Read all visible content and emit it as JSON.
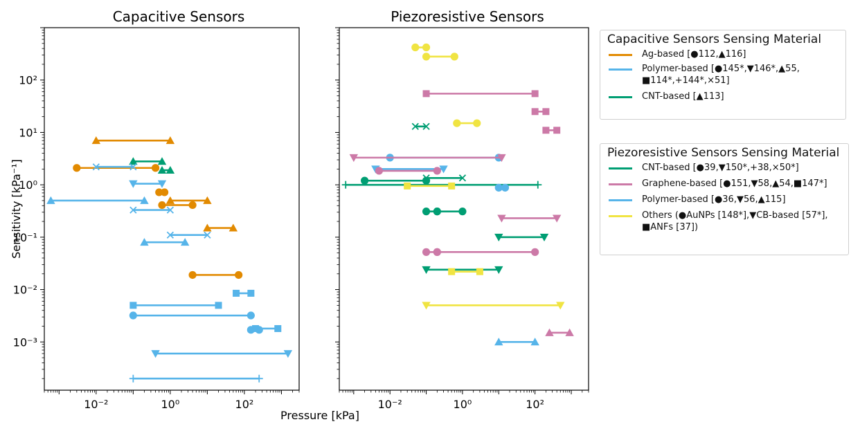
{
  "axes_text": {
    "xlabel": "Pressure [kPa]",
    "ylabel": "Sensitivity [kPa⁻¹]"
  },
  "colors": {
    "ag": "#E28A00",
    "polymer": "#56B4E9",
    "cnt": "#009E73",
    "graphene": "#CC79A7",
    "others": "#F0E442"
  },
  "legend_capacitive": {
    "title": "Capacitive Sensors Sensing Material",
    "entries": [
      {
        "color": "#E28A00",
        "label": "Ag-based [●112,▲116]"
      },
      {
        "color": "#56B4E9",
        "label": "Polymer-based [●145*,▼146*,▲55, ■114*,+144*,×51]"
      },
      {
        "color": "#009E73",
        "label": "CNT-based [▲113]"
      }
    ]
  },
  "legend_piezoresistive": {
    "title": "Piezoresistive Sensors Sensing Material",
    "entries": [
      {
        "color": "#009E73",
        "label": "CNT-based [●39,▼150*,+38,×50*]"
      },
      {
        "color": "#CC79A7",
        "label": "Graphene-based [●151,▼58,▲54,■147*]"
      },
      {
        "color": "#56B4E9",
        "label": "Polymer-based [●36,▼56,▲115]"
      },
      {
        "color": "#F0E442",
        "label": "Others (●AuNPs [148*],▼CB-based [57*], ■ANFs [37])"
      }
    ]
  },
  "chart_data": [
    {
      "type": "scatter",
      "title": "Capacitive Sensors",
      "xlabel": "Pressure [kPa]",
      "ylabel": "Sensitivity [kPa⁻¹]",
      "xscale": "log",
      "yscale": "log",
      "xlim": [
        0.0004,
        3000
      ],
      "ylim": [
        0.00012,
        1000
      ],
      "xticks": [
        0.01,
        1,
        100
      ],
      "xtick_labels": [
        "10⁻²",
        "10⁰",
        "10²"
      ],
      "yticks": [
        0.001,
        0.01,
        0.1,
        1,
        10,
        100
      ],
      "ytick_labels": [
        "10⁻³",
        "10⁻²",
        "10⁻¹",
        "10⁰",
        "10¹",
        "10²"
      ],
      "segments": [
        {
          "group": "Ag-based",
          "color": "#E28A00",
          "marker": "triangle-up",
          "x": [
            0.01,
            1
          ],
          "y": 7
        },
        {
          "group": "Ag-based",
          "color": "#E28A00",
          "marker": "circle",
          "x": [
            0.003,
            0.4
          ],
          "y": 2.1
        },
        {
          "group": "Ag-based",
          "color": "#E28A00",
          "marker": "circle",
          "x": [
            0.5,
            0.7
          ],
          "y": 0.72
        },
        {
          "group": "Ag-based",
          "color": "#E28A00",
          "marker": "triangle-up",
          "x": [
            1,
            10
          ],
          "y": 0.5
        },
        {
          "group": "Ag-based",
          "color": "#E28A00",
          "marker": "circle",
          "x": [
            0.6,
            4
          ],
          "y": 0.41
        },
        {
          "group": "Ag-based",
          "color": "#E28A00",
          "marker": "triangle-up",
          "x": [
            10,
            50
          ],
          "y": 0.15
        },
        {
          "group": "Ag-based",
          "color": "#E28A00",
          "marker": "circle",
          "x": [
            4,
            70
          ],
          "y": 0.019
        },
        {
          "group": "CNT-based",
          "color": "#009E73",
          "marker": "triangle-up",
          "x": [
            0.1,
            0.6
          ],
          "y": 2.8
        },
        {
          "group": "CNT-based",
          "color": "#009E73",
          "marker": "triangle-up",
          "x": [
            0.6,
            1
          ],
          "y": 1.9
        },
        {
          "group": "Polymer-based",
          "color": "#56B4E9",
          "marker": "x",
          "x": [
            0.01,
            0.1
          ],
          "y": 2.2
        },
        {
          "group": "Polymer-based",
          "color": "#56B4E9",
          "marker": "triangle-down",
          "x": [
            0.1,
            0.6
          ],
          "y": 1.05
        },
        {
          "group": "Polymer-based",
          "color": "#56B4E9",
          "marker": "triangle-up",
          "x": [
            0.0006,
            0.2
          ],
          "y": 0.5
        },
        {
          "group": "Polymer-based",
          "color": "#56B4E9",
          "marker": "x",
          "x": [
            0.1,
            1
          ],
          "y": 0.33
        },
        {
          "group": "Polymer-based",
          "color": "#56B4E9",
          "marker": "x",
          "x": [
            1,
            10
          ],
          "y": 0.11
        },
        {
          "group": "Polymer-based",
          "color": "#56B4E9",
          "marker": "triangle-up",
          "x": [
            0.2,
            2.5
          ],
          "y": 0.08
        },
        {
          "group": "Polymer-based",
          "color": "#56B4E9",
          "marker": "square",
          "x": [
            60,
            150
          ],
          "y": 0.0085
        },
        {
          "group": "Polymer-based",
          "color": "#56B4E9",
          "marker": "square",
          "x": [
            0.1,
            20
          ],
          "y": 0.005
        },
        {
          "group": "Polymer-based",
          "color": "#56B4E9",
          "marker": "circle",
          "x": [
            0.1,
            150
          ],
          "y": 0.0032
        },
        {
          "group": "Polymer-based",
          "color": "#56B4E9",
          "marker": "circle",
          "x": [
            150,
            250
          ],
          "y": 0.0017
        },
        {
          "group": "Polymer-based",
          "color": "#56B4E9",
          "marker": "square",
          "x": [
            200,
            800
          ],
          "y": 0.0018
        },
        {
          "group": "Polymer-based",
          "color": "#56B4E9",
          "marker": "triangle-down",
          "x": [
            0.4,
            1500
          ],
          "y": 0.0006
        },
        {
          "group": "Polymer-based",
          "color": "#56B4E9",
          "marker": "plus",
          "x": [
            0.1,
            250
          ],
          "y": 0.0002
        }
      ]
    },
    {
      "type": "scatter",
      "title": "Piezoresistive Sensors",
      "xlabel": "Pressure [kPa]",
      "ylabel": "Sensitivity [kPa⁻¹]",
      "xscale": "log",
      "yscale": "log",
      "xlim": [
        0.0004,
        3000
      ],
      "ylim": [
        0.00012,
        1000
      ],
      "xticks": [
        0.01,
        1,
        100
      ],
      "xtick_labels": [
        "10⁻²",
        "10⁰",
        "10²"
      ],
      "segments": [
        {
          "group": "Others",
          "color": "#F0E442",
          "marker": "circle",
          "x": [
            0.05,
            0.1
          ],
          "y": 420
        },
        {
          "group": "Others",
          "color": "#F0E442",
          "marker": "circle",
          "x": [
            0.1,
            0.6
          ],
          "y": 280
        },
        {
          "group": "Graphene-based",
          "color": "#CC79A7",
          "marker": "square",
          "x": [
            0.1,
            100
          ],
          "y": 55
        },
        {
          "group": "Graphene-based",
          "color": "#CC79A7",
          "marker": "square",
          "x": [
            100,
            200
          ],
          "y": 25
        },
        {
          "group": "Others",
          "color": "#F0E442",
          "marker": "circle",
          "x": [
            0.7,
            2.5
          ],
          "y": 15
        },
        {
          "group": "CNT-based",
          "color": "#009E73",
          "marker": "x",
          "x": [
            0.05,
            0.1
          ],
          "y": 13
        },
        {
          "group": "Graphene-based",
          "color": "#CC79A7",
          "marker": "square",
          "x": [
            200,
            400
          ],
          "y": 11
        },
        {
          "group": "Polymer-based",
          "color": "#56B4E9",
          "marker": "circle",
          "x": [
            0.01,
            10
          ],
          "y": 3.3
        },
        {
          "group": "Graphene-based",
          "color": "#CC79A7",
          "marker": "triangle-down",
          "x": [
            0.001,
            12
          ],
          "y": 3.3
        },
        {
          "group": "Polymer-based",
          "color": "#56B4E9",
          "marker": "triangle-down",
          "x": [
            0.004,
            0.3
          ],
          "y": 2.0
        },
        {
          "group": "Graphene-based",
          "color": "#CC79A7",
          "marker": "circle",
          "x": [
            0.005,
            0.2
          ],
          "y": 1.85
        },
        {
          "group": "CNT-based",
          "color": "#009E73",
          "marker": "x",
          "x": [
            0.1,
            1
          ],
          "y": 1.35
        },
        {
          "group": "CNT-based",
          "color": "#009E73",
          "marker": "circle",
          "x": [
            0.002,
            0.1
          ],
          "y": 1.2
        },
        {
          "group": "CNT-based",
          "color": "#009E73",
          "marker": "plus",
          "x": [
            0.0006,
            120
          ],
          "y": 1.0
        },
        {
          "group": "Others",
          "color": "#F0E442",
          "marker": "square",
          "x": [
            0.03,
            0.5
          ],
          "y": 0.95
        },
        {
          "group": "Polymer-based",
          "color": "#56B4E9",
          "marker": "circle",
          "x": [
            10,
            15
          ],
          "y": 0.88
        },
        {
          "group": "CNT-based",
          "color": "#009E73",
          "marker": "circle",
          "x": [
            0.1,
            0.2
          ],
          "y": 0.31
        },
        {
          "group": "CNT-based",
          "color": "#009E73",
          "marker": "circle",
          "x": [
            0.2,
            1
          ],
          "y": 0.31
        },
        {
          "group": "Graphene-based",
          "color": "#CC79A7",
          "marker": "triangle-down",
          "x": [
            12,
            400
          ],
          "y": 0.23
        },
        {
          "group": "CNT-based",
          "color": "#009E73",
          "marker": "triangle-down",
          "x": [
            10,
            180
          ],
          "y": 0.1
        },
        {
          "group": "Graphene-based",
          "color": "#CC79A7",
          "marker": "circle",
          "x": [
            0.1,
            0.2
          ],
          "y": 0.052
        },
        {
          "group": "Graphene-based",
          "color": "#CC79A7",
          "marker": "circle",
          "x": [
            0.2,
            100
          ],
          "y": 0.052
        },
        {
          "group": "CNT-based",
          "color": "#009E73",
          "marker": "triangle-down",
          "x": [
            0.1,
            10
          ],
          "y": 0.024
        },
        {
          "group": "Others",
          "color": "#F0E442",
          "marker": "square",
          "x": [
            0.5,
            3
          ],
          "y": 0.022
        },
        {
          "group": "Others",
          "color": "#F0E442",
          "marker": "triangle-down",
          "x": [
            0.1,
            500
          ],
          "y": 0.005
        },
        {
          "group": "Graphene-based",
          "color": "#CC79A7",
          "marker": "triangle-up",
          "x": [
            250,
            900
          ],
          "y": 0.0015
        },
        {
          "group": "Polymer-based",
          "color": "#56B4E9",
          "marker": "triangle-up",
          "x": [
            10,
            100
          ],
          "y": 0.001
        }
      ]
    }
  ]
}
